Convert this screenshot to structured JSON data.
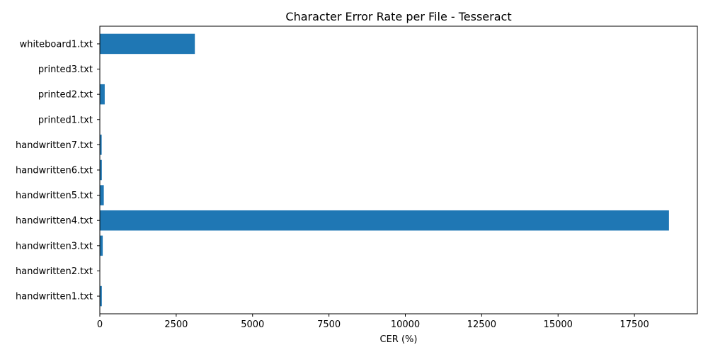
{
  "chart_data": {
    "type": "bar",
    "orientation": "horizontal",
    "title": "Character Error Rate per File - Tesseract",
    "xlabel": "CER (%)",
    "ylabel": "",
    "categories": [
      "handwritten1.txt",
      "handwritten2.txt",
      "handwritten3.txt",
      "handwritten4.txt",
      "handwritten5.txt",
      "handwritten6.txt",
      "handwritten7.txt",
      "printed1.txt",
      "printed2.txt",
      "printed3.txt",
      "whiteboard1.txt"
    ],
    "values": [
      65,
      2,
      95,
      18630,
      130,
      65,
      60,
      2,
      160,
      2,
      3110
    ],
    "xlim": [
      0,
      19560
    ],
    "xticks": [
      0,
      2500,
      5000,
      7500,
      10000,
      12500,
      15000,
      17500
    ],
    "xtick_labels": [
      "0",
      "2500",
      "5000",
      "7500",
      "10000",
      "12500",
      "15000",
      "17500"
    ],
    "grid": false,
    "legend": "none",
    "bar_color": "#1f77b4"
  }
}
